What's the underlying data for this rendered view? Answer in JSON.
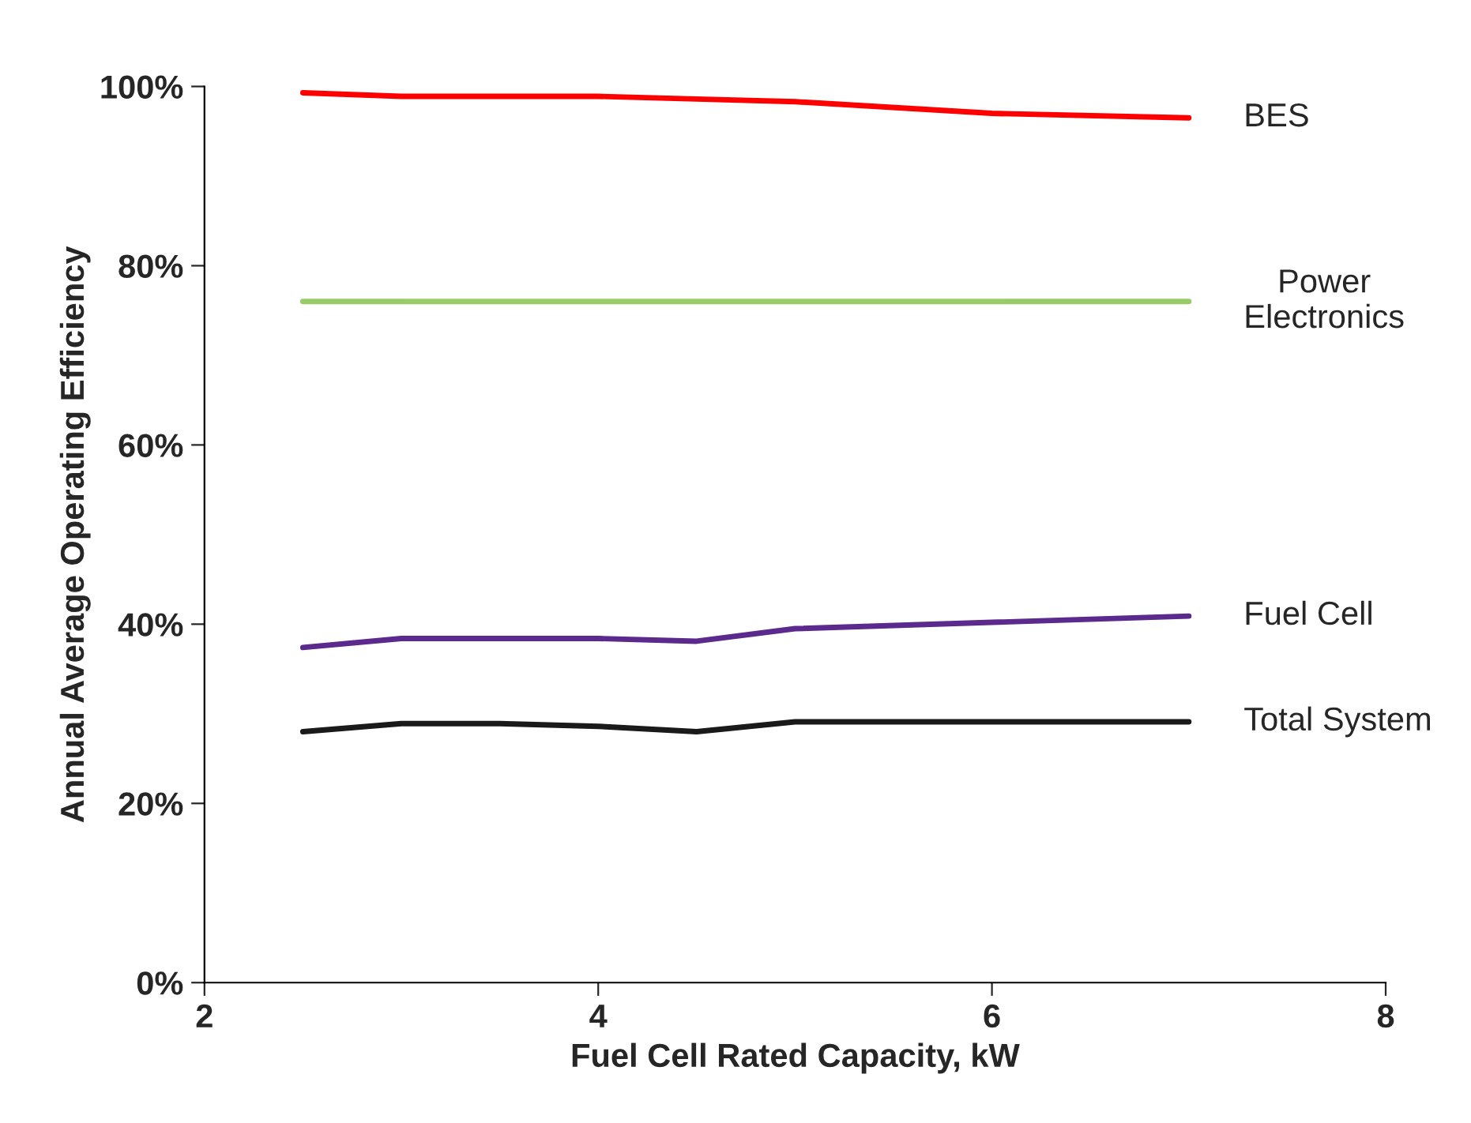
{
  "chart_data": {
    "type": "line",
    "xlabel": "Fuel Cell Rated Capacity, kW",
    "ylabel": "Annual Average Operating Efficiency",
    "xlim": [
      2,
      8
    ],
    "xticks": [
      2,
      4,
      6,
      8
    ],
    "ylim": [
      0,
      100
    ],
    "yticks": [
      {
        "value": 0,
        "label": "0%"
      },
      {
        "value": 20,
        "label": "20%"
      },
      {
        "value": 40,
        "label": "40%"
      },
      {
        "value": 60,
        "label": "60%"
      },
      {
        "value": 80,
        "label": "80%"
      },
      {
        "value": 100,
        "label": "100%"
      }
    ],
    "grid": false,
    "legend": false,
    "marker": "none",
    "line_style": "solid",
    "x": [
      2.5,
      3,
      3.5,
      4,
      4.5,
      5,
      6,
      7
    ],
    "series": [
      {
        "name": "BES",
        "color": "#ff0000",
        "values": [
          99.3,
          98.9,
          98.9,
          98.9,
          98.6,
          98.3,
          97.0,
          96.5
        ]
      },
      {
        "name": "Power\nElectronics",
        "color": "#99cc66",
        "values": [
          76,
          76,
          76,
          76,
          76,
          76,
          76,
          76
        ]
      },
      {
        "name": "Fuel Cell",
        "color": "#5b2a8c",
        "values": [
          37.4,
          38.4,
          38.4,
          38.4,
          38.1,
          39.5,
          40.2,
          40.9
        ]
      },
      {
        "name": "Total System",
        "color": "#1a1a1a",
        "values": [
          28.0,
          28.9,
          28.9,
          28.6,
          28.0,
          29.1,
          29.1,
          29.1
        ]
      }
    ]
  }
}
